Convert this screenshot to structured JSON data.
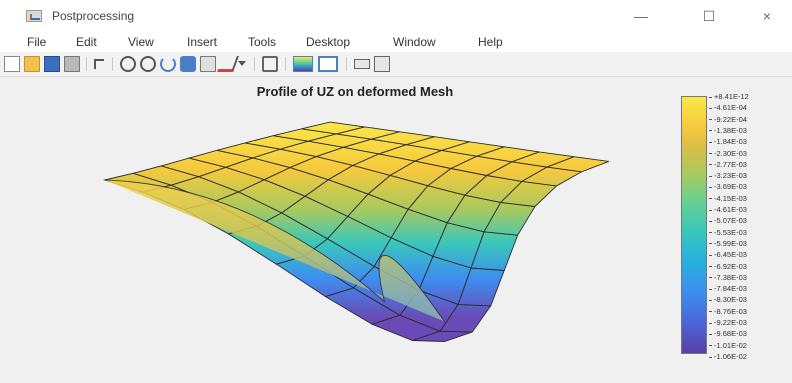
{
  "window": {
    "title": "Postprocessing",
    "minimize_glyph": "—",
    "maximize_glyph": "☐",
    "close_glyph": "×"
  },
  "menu": [
    "File",
    "Edit",
    "View",
    "Insert",
    "Tools",
    "Desktop",
    "Window",
    "Help"
  ],
  "toolbar_icons": [
    "new-figure-icon",
    "open-folder-icon",
    "save-icon",
    "print-icon",
    "edit-plot-icon",
    "zoom-in-icon",
    "zoom-out-icon",
    "rotate-3d-icon",
    "pan-icon",
    "data-cursor-icon",
    "brush-icon",
    "brush-dropdown-icon",
    "link-plot-icon",
    "colorbar-icon",
    "legend-icon",
    "hide-tools-icon",
    "show-tools-icon"
  ],
  "plot": {
    "title": "Profile of UZ on deformed Mesh"
  },
  "colorbar": {
    "labels": [
      "+8.41E-12",
      "-4.61E-04",
      "-9.22E-04",
      "-1.38E-03",
      "-1.84E-03",
      "-2.30E-03",
      "-2.77E-03",
      "-3.23E-03",
      "-3.69E-03",
      "-4.15E-03",
      "-4.61E-03",
      "-5.07E-03",
      "-5.53E-03",
      "-5.99E-03",
      "-6.45E-03",
      "-6.92E-03",
      "-7.38E-03",
      "-7.84E-03",
      "-8.30E-03",
      "-8.76E-03",
      "-9.22E-03",
      "-9.68E-03",
      "-1.01E-02",
      "-1.06E-02"
    ],
    "colors": [
      "#f9e84a",
      "#f6c93d",
      "#a9c95e",
      "#3ac7bb",
      "#3d8ef0",
      "#5a3fa8"
    ]
  }
}
